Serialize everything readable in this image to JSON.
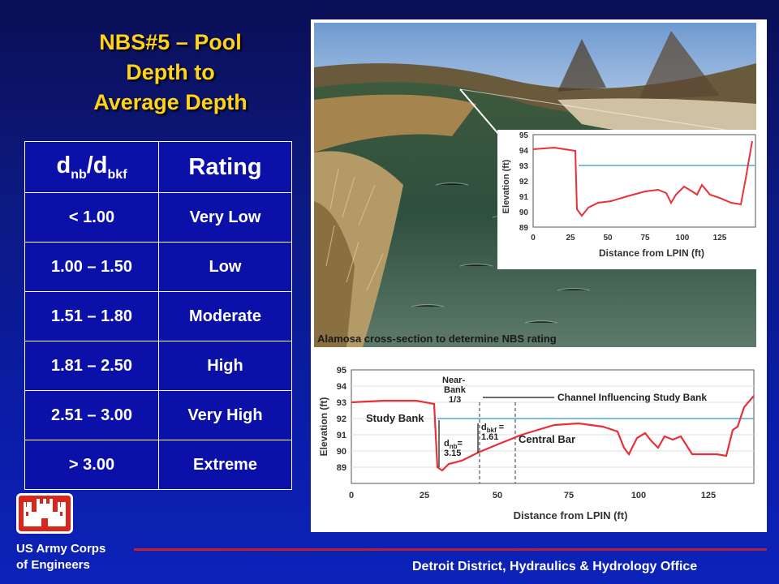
{
  "title": {
    "line1": "NBS#5 – Pool",
    "line2": "Depth to",
    "line3": "Average Depth"
  },
  "table": {
    "header": {
      "col1_main": "d",
      "col1_sub1": "nb",
      "col1_slash": "/d",
      "col1_sub2": "bkf",
      "col2": "Rating"
    },
    "rows": [
      {
        "range": "< 1.00",
        "rating": "Very Low"
      },
      {
        "range": "1.00 – 1.50",
        "rating": "Low"
      },
      {
        "range": "1.51 – 1.80",
        "rating": "Moderate"
      },
      {
        "range": "1.81 – 2.50",
        "rating": "High"
      },
      {
        "range": "2.51 – 3.00",
        "rating": "Very High"
      },
      {
        "range": "> 3.00",
        "rating": "Extreme"
      }
    ]
  },
  "figure": {
    "caption": "Alamosa cross-section to determine NBS rating",
    "inset_plot": {
      "ylabel": "Elevation (ft)",
      "xlabel": "Distance from LPIN (ft)",
      "yticks": [
        "95",
        "94",
        "93",
        "92",
        "91",
        "90",
        "89"
      ],
      "xticks": [
        "0",
        "25",
        "50",
        "75",
        "100",
        "125"
      ]
    },
    "lower_plot": {
      "ylabel": "Elevation (ft)",
      "xlabel": "Distance from LPIN (ft)",
      "yticks": [
        "95",
        "94",
        "93",
        "92",
        "91",
        "90",
        "89"
      ],
      "xticks": [
        "0",
        "25",
        "50",
        "75",
        "100",
        "125"
      ],
      "label_channel": "Channel Influencing Study Bank",
      "label_near_bank_1": "Near-",
      "label_near_bank_2": "Bank",
      "label_near_bank_3": "1/3",
      "label_study_bank": "Study Bank",
      "label_dbkf_1": "d",
      "label_dbkf_sub": "bkf",
      "label_dbkf_eq": " =",
      "label_dbkf_val": "1.61",
      "label_dnb_1": "d",
      "label_dnb_sub": "nb",
      "label_dnb_eq": "=",
      "label_dnb_val": "3.15",
      "label_central_bar": "Central Bar"
    }
  },
  "footer": {
    "org_line1": "US Army Corps",
    "org_line2": "of Engineers",
    "office": "Detroit District, Hydraulics & Hydrology Office"
  },
  "colors": {
    "title": "#ffd21c",
    "background": "#0c1a86",
    "profile_line": "#e8303a",
    "water_line": "#4ea8e0",
    "logo_red": "#d9261c"
  }
}
